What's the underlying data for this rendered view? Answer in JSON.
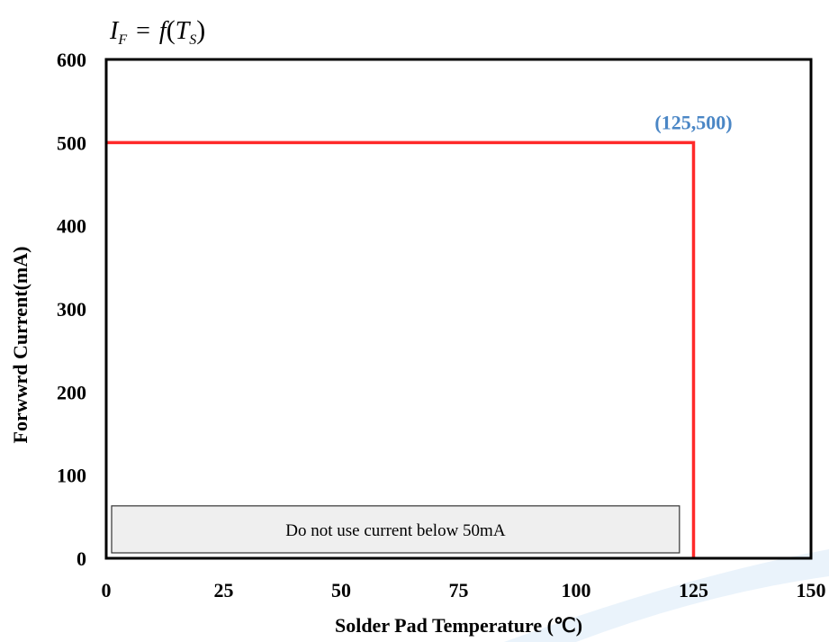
{
  "chart_data": {
    "type": "line",
    "title_formula": {
      "lhs": "I",
      "lhs_sub": "F",
      "eq": "=",
      "fn": "f",
      "arg": "T",
      "arg_sub": "S"
    },
    "xlabel": "Solder Pad Temperature (℃)",
    "ylabel": "Forwwrd Current(mA)",
    "xlim": [
      0,
      150
    ],
    "ylim": [
      0,
      600
    ],
    "xticks": [
      0,
      25,
      50,
      75,
      100,
      125,
      150
    ],
    "yticks": [
      0,
      100,
      200,
      300,
      400,
      500,
      600
    ],
    "grid": false,
    "series": [
      {
        "x": [
          0,
          125,
          125
        ],
        "y": [
          500,
          500,
          0
        ],
        "color": "#ff2a2a"
      }
    ],
    "annotations": [
      {
        "text": "(125,500)",
        "x": 125,
        "y": 500,
        "color": "#4a86c5"
      }
    ],
    "note_box": {
      "text": "Do not use current below 50mA",
      "x_from": 0,
      "x_to": 122,
      "y_from": 0,
      "y_to": 50
    }
  }
}
